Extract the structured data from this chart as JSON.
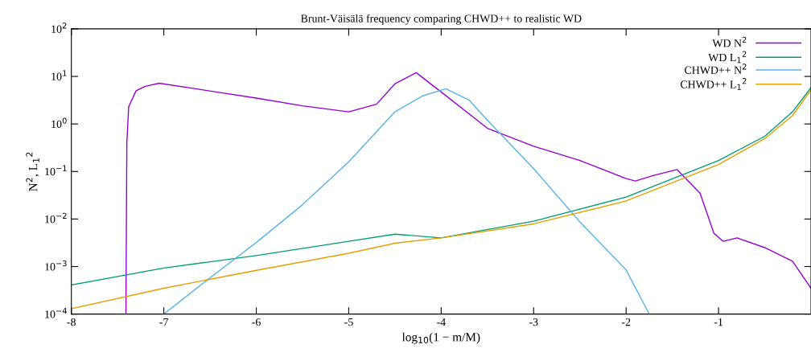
{
  "chart_data": {
    "type": "line",
    "title": "Brunt-Väisälä frequency comparing CHWD++ to realistic WD",
    "xlabel": "log$_{10}$(1 − m/M)",
    "ylabel": "N$^{2}$, L$_{1}$$^{2}$",
    "log": "y",
    "grid": false,
    "legend": "top right",
    "marker": "none",
    "line_style": "solid",
    "xlim": [
      -8,
      0
    ],
    "ylim": [
      0.0001,
      100
    ],
    "xticks": [
      -8,
      -7,
      -6,
      -5,
      -4,
      -3,
      -2,
      -1
    ],
    "yticks": [
      {
        "value": 0.0001,
        "label": "10$^{−4}$"
      },
      {
        "value": 0.001,
        "label": "10$^{−3}$"
      },
      {
        "value": 0.01,
        "label": "10$^{−2}$"
      },
      {
        "value": 0.1,
        "label": "10$^{−1}$"
      },
      {
        "value": 1,
        "label": "10$^{0}$"
      },
      {
        "value": 10,
        "label": "10$^{1}$"
      },
      {
        "value": 100,
        "label": "10$^{2}$"
      }
    ],
    "series": [
      {
        "name": "WD N$^{2}$",
        "color": "#9400d3",
        "x": [
          -7.41,
          -7.4,
          -7.38,
          -7.3,
          -7.2,
          -7.05,
          -6,
          -5.5,
          -5,
          -4.7,
          -4.5,
          -4.27,
          -4,
          -3.5,
          -3,
          -2.5,
          -2,
          -1.9,
          -1.7,
          -1.45,
          -1.2,
          -1.05,
          -0.95,
          -0.8,
          -0.5,
          -0.2,
          0
        ],
        "values": [
          0.0001,
          0.4,
          2.3,
          5,
          6.2,
          7.2,
          3.5,
          2.4,
          1.8,
          2.6,
          7,
          12,
          4.7,
          0.81,
          0.34,
          0.17,
          0.071,
          0.063,
          0.083,
          0.11,
          0.035,
          0.005,
          0.0034,
          0.004,
          0.0025,
          0.0013,
          0.00035
        ]
      },
      {
        "name": "WD L$_{1}$$^{2}$",
        "color": "#009e73",
        "x": [
          -8,
          -7,
          -6,
          -5,
          -4.5,
          -4,
          -3,
          -2,
          -1,
          -0.5,
          -0.2,
          0
        ],
        "values": [
          0.00041,
          0.00093,
          0.0017,
          0.0034,
          0.0048,
          0.004,
          0.009,
          0.029,
          0.17,
          0.55,
          1.8,
          5.8
        ]
      },
      {
        "name": "CHWD++ N$^{2}$",
        "color": "#56b4e9",
        "x": [
          -7,
          -6.5,
          -6,
          -5.5,
          -5,
          -4.5,
          -4.2,
          -3.95,
          -3.7,
          -3.5,
          -3,
          -2.5,
          -2,
          -1.75
        ],
        "values": [
          0.0001,
          0.00058,
          0.0032,
          0.02,
          0.16,
          1.8,
          3.9,
          5.5,
          3.2,
          1.2,
          0.115,
          0.0087,
          0.00085,
          0.0001
        ]
      },
      {
        "name": "CHWD++ L$_{1}$$^{2}$",
        "color": "#e69f00",
        "x": [
          -8,
          -7,
          -6,
          -5,
          -4.5,
          -4,
          -3,
          -2,
          -1,
          -0.5,
          -0.2,
          0
        ],
        "values": [
          0.00013,
          0.00035,
          0.00083,
          0.0019,
          0.0031,
          0.004,
          0.0079,
          0.024,
          0.14,
          0.49,
          1.5,
          5.2
        ]
      }
    ]
  }
}
